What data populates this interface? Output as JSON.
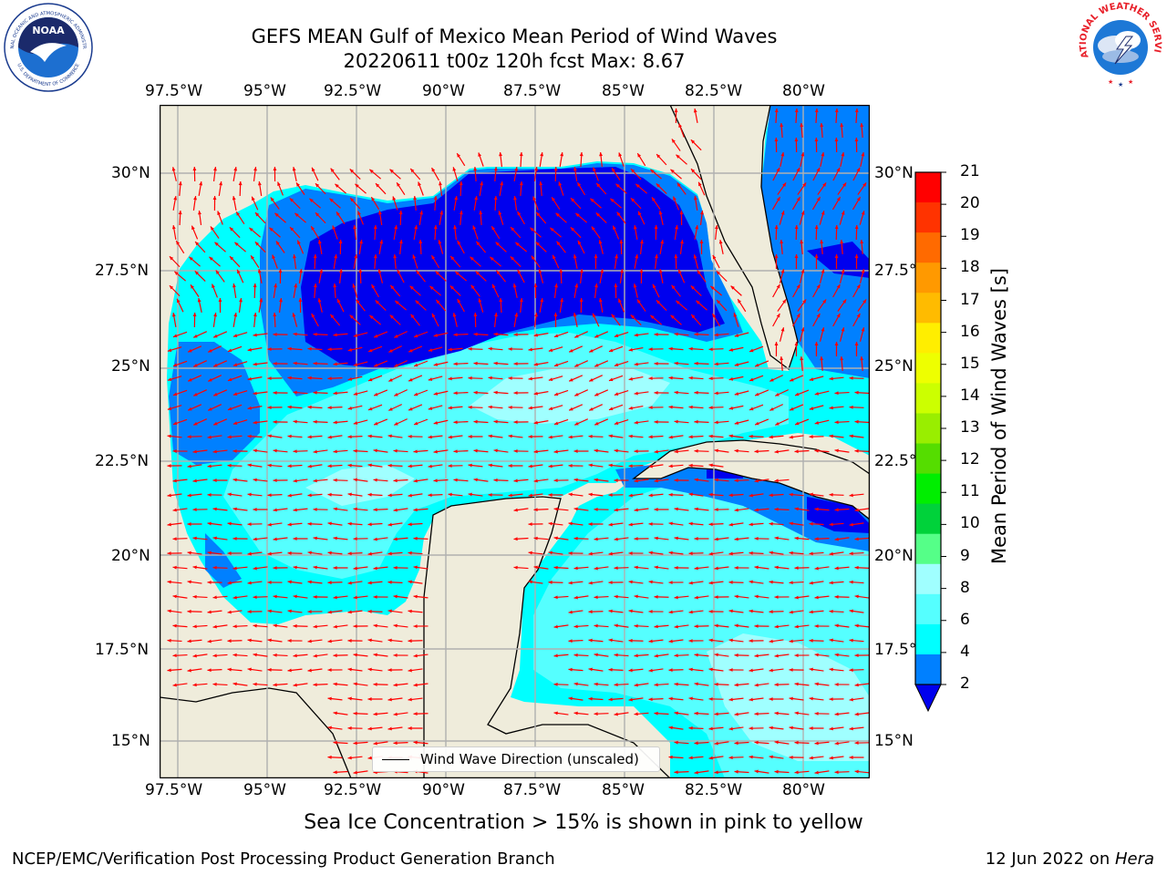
{
  "header": {
    "title_line1": "GEFS MEAN Gulf of Mexico Mean Period of Wind Waves",
    "title_line2": "20220611 t00z 120h fcst   Max: 8.67"
  },
  "logos": {
    "noaa_text": "NOAA",
    "noaa_ring_top": "NATIONAL OCEANIC AND ATMOSPHERIC ADMINISTRATION",
    "noaa_ring_bottom": "U.S. DEPARTMENT OF COMMERCE",
    "nws_ring_top": "NATIONAL WEATHER SERVICE"
  },
  "map": {
    "lon_labels": [
      "97.5°W",
      "95°W",
      "92.5°W",
      "90°W",
      "87.5°W",
      "85°W",
      "82.5°W",
      "80°W"
    ],
    "lat_labels_left": [
      "30°N",
      "27.5°N",
      "25°N",
      "22.5°N",
      "20°N",
      "17.5°N",
      "15°N"
    ],
    "lat_labels_right": [
      "30°N",
      "27.5°N",
      "25°N",
      "22.5°N",
      "20°N",
      "17.5°N",
      "15°N"
    ],
    "lon_range": [
      -98,
      -78.2
    ],
    "lat_range": [
      14,
      31.8
    ],
    "colors": {
      "land": "#efecdb",
      "grid": "#b0b0b0",
      "arrow": "#ff0000",
      "coast": "#000000"
    },
    "legend_label": "Wind Wave Direction (unscaled)"
  },
  "colorbar": {
    "label": "Mean Period of Wind Waves [s]",
    "tick_labels": [
      "21",
      "20",
      "19",
      "18",
      "17",
      "16",
      "15",
      "14",
      "13",
      "12",
      "11",
      "10",
      "9",
      "8",
      "6",
      "4",
      "2"
    ],
    "colors": [
      "#ff0000",
      "#ff3300",
      "#ff6a00",
      "#ff9900",
      "#ffbb00",
      "#ffee00",
      "#eeff00",
      "#ccff00",
      "#99ee00",
      "#55dd00",
      "#00ee00",
      "#00d23a",
      "#55ff88",
      "#a0ffff",
      "#55ffff",
      "#00ffff",
      "#0080ff"
    ],
    "extend_color": "#0000ee"
  },
  "caption": "Sea Ice Concentration > 15% is shown in pink to yellow",
  "footer": {
    "left": "NCEP/EMC/Verification Post Processing Product Generation Branch",
    "date": "12 Jun 2022 on ",
    "host": "Hera"
  }
}
